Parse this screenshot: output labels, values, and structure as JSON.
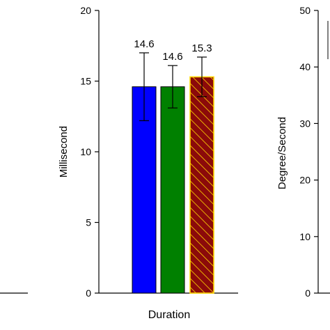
{
  "colors": {
    "bar1": "#0000ff",
    "bar2": "#008000",
    "bar3_fill": "#8b0a0a",
    "bar3_hatch": "#ffd700",
    "bar3_border": "#ffd700",
    "axis": "#000000",
    "background": "#ffffff"
  },
  "chart_data": [
    {
      "type": "bar",
      "panel": "left-cropped",
      "note_visible": "only a horizontal baseline fragment is visible at the left edge"
    },
    {
      "type": "bar",
      "panel": "center",
      "categories": [
        "Duration"
      ],
      "xlabel": "Duration",
      "ylabel": "Millisecond",
      "ylim": [
        0,
        20
      ],
      "yticks": [
        0,
        5,
        10,
        15,
        20
      ],
      "ytick_labels": [
        "0",
        "5",
        "10",
        "15",
        "20"
      ],
      "series": [
        {
          "values": [
            14.6
          ],
          "error": [
            2.4
          ],
          "label": "14.6",
          "color_key": "bar1",
          "pattern": "solid"
        },
        {
          "values": [
            14.6
          ],
          "error": [
            1.5
          ],
          "label": "14.6",
          "color_key": "bar2",
          "pattern": "solid"
        },
        {
          "values": [
            15.3
          ],
          "error": [
            1.4
          ],
          "label": "15.3",
          "color_key": "bar3_fill",
          "pattern": "hatched"
        }
      ],
      "grid": false
    },
    {
      "type": "bar",
      "panel": "right-cropped",
      "ylabel": "Degree/Second",
      "ylim": [
        0,
        50
      ],
      "yticks": [
        0,
        10,
        20,
        30,
        40,
        50
      ],
      "ytick_labels": [
        "0",
        "10",
        "20",
        "30",
        "40",
        "50"
      ],
      "grid": false
    }
  ]
}
